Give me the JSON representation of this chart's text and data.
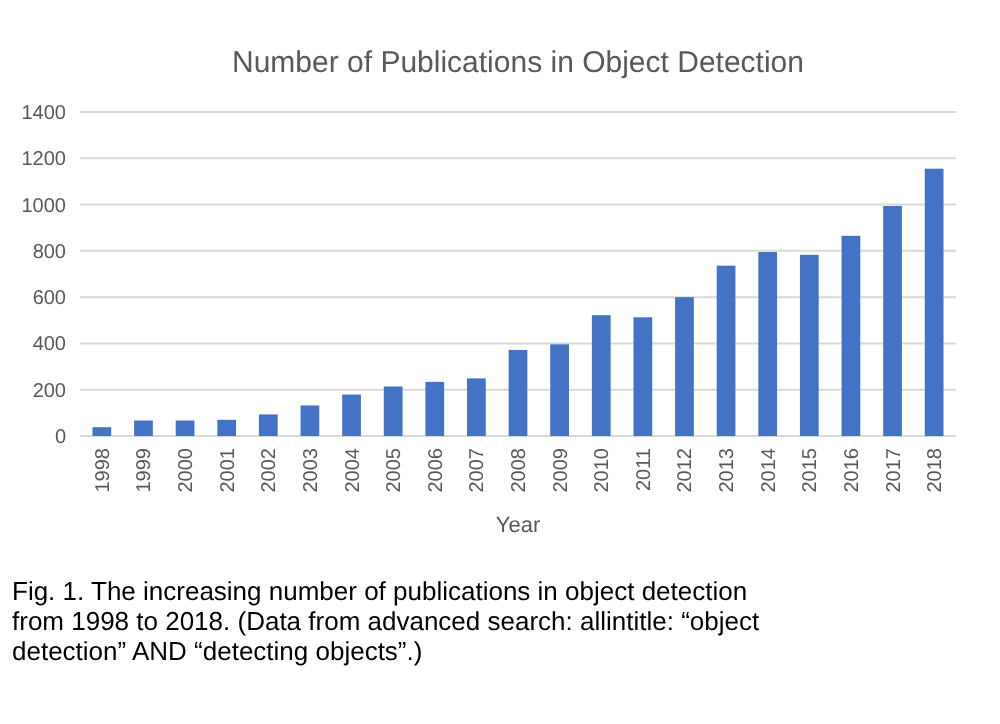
{
  "chart_data": {
    "type": "bar",
    "title": "Number of Publications in Object Detection",
    "xlabel": "Year",
    "categories": [
      "1998",
      "1999",
      "2000",
      "2001",
      "2002",
      "2003",
      "2004",
      "2005",
      "2006",
      "2007",
      "2008",
      "2009",
      "2010",
      "2011",
      "2012",
      "2013",
      "2014",
      "2015",
      "2016",
      "2017",
      "2018"
    ],
    "values": [
      38,
      67,
      67,
      70,
      93,
      132,
      179,
      214,
      234,
      249,
      372,
      396,
      522,
      513,
      600,
      736,
      795,
      783,
      865,
      994,
      1155
    ],
    "color": "#4472c4",
    "ylim": [
      0,
      1400
    ],
    "yticks": [
      0,
      200,
      400,
      600,
      800,
      1000,
      1200,
      1400
    ],
    "grid": "y",
    "annotations": [
      "Fig. 1. The increasing number of publications in object detection from 1998 to 2018. (Data from advanced search: allintitle: “object detection” AND “detecting objects”.)"
    ]
  }
}
